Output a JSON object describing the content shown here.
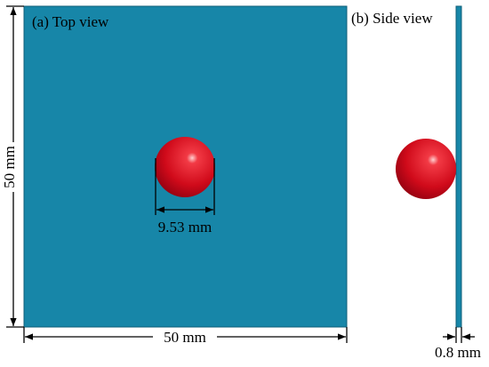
{
  "panels": [
    {
      "label": "(a) Top view"
    },
    {
      "label": "(b) Side view"
    }
  ],
  "dimensions": {
    "plate_height": "50 mm",
    "plate_width": "50 mm",
    "sphere_diameter": "9.53 mm",
    "plate_thickness": "0.8 mm"
  }
}
